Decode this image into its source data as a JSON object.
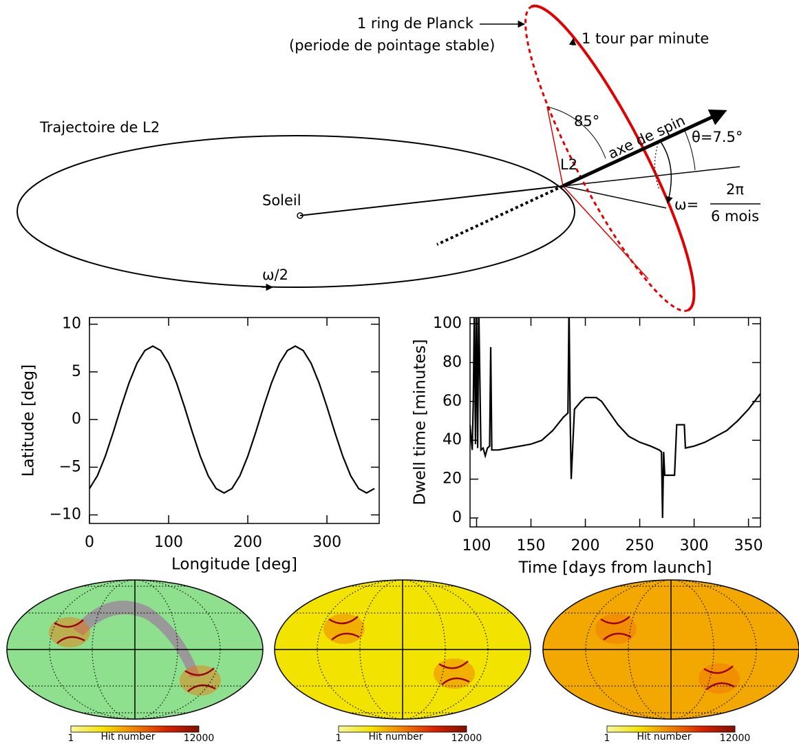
{
  "diagram": {
    "ring": "1 ring de Planck",
    "ring_sub": "(periode de pointage stable)",
    "tour": "1 tour par minute",
    "trajectory": "Trajectoire de L2",
    "sun": "Soleil",
    "l2": "L2",
    "angle": "85°",
    "spin_axis": "axe de spin",
    "theta": "θ=7.5°",
    "omega_lhs": "ω=",
    "omega_num": "2π",
    "omega_den": "6 mois",
    "omega_half": "ω/2"
  },
  "chart_data": [
    {
      "type": "line",
      "x_label": "Longitude [deg]",
      "y_label": "Latitude [deg]",
      "color": "#000000",
      "x": [
        0,
        10,
        20,
        30,
        40,
        50,
        60,
        70,
        80,
        90,
        100,
        110,
        120,
        130,
        140,
        150,
        160,
        170,
        180,
        190,
        200,
        210,
        220,
        230,
        240,
        250,
        260,
        270,
        280,
        290,
        300,
        310,
        320,
        330,
        340,
        350,
        360
      ],
      "values": [
        -7.24,
        -5.9,
        -3.85,
        -1.34,
        1.34,
        3.85,
        5.9,
        7.24,
        7.7,
        7.24,
        5.9,
        3.85,
        1.34,
        -1.34,
        -3.85,
        -5.9,
        -7.24,
        -7.7,
        -7.24,
        -5.9,
        -3.85,
        -1.34,
        1.34,
        3.85,
        5.9,
        7.24,
        7.7,
        7.24,
        5.9,
        3.85,
        1.34,
        -1.34,
        -3.85,
        -5.9,
        -7.24,
        -7.7,
        -7.24
      ],
      "xlim": [
        0,
        366
      ],
      "ylim": [
        -10.9,
        10.7
      ],
      "xticks": [
        0,
        100,
        200,
        300
      ],
      "yticks": [
        {
          "value": -10,
          "label": "−10"
        },
        {
          "value": -5,
          "label": "−5"
        },
        0,
        5,
        10
      ]
    },
    {
      "type": "line",
      "x_label": "Time [days from launch]",
      "y_label": "Dwell time [minutes]",
      "color": "#000000",
      "x": [
        94,
        96,
        97,
        98,
        99,
        100,
        101,
        102,
        104,
        106,
        108,
        110,
        112,
        113,
        114,
        120,
        130,
        140,
        150,
        160,
        170,
        180,
        184,
        185,
        186,
        187,
        190,
        196,
        200,
        205,
        210,
        215,
        220,
        230,
        240,
        250,
        260,
        268,
        270,
        271,
        272,
        273,
        282,
        283,
        284,
        291,
        292,
        300,
        310,
        320,
        330,
        340,
        350,
        361
      ],
      "values": [
        48,
        35,
        60,
        110,
        38,
        110,
        36,
        110,
        35,
        36,
        32,
        36,
        37,
        88,
        35,
        35,
        36,
        37,
        38,
        40,
        45,
        52,
        54,
        110,
        54,
        20,
        56,
        60,
        62,
        62,
        62,
        60,
        56,
        48,
        42,
        39,
        37,
        35,
        34,
        0,
        34,
        22,
        22,
        35,
        48,
        48,
        36,
        37,
        39,
        42,
        45,
        50,
        56,
        64
      ],
      "xlim": [
        94,
        361
      ],
      "ylim": [
        -4.6,
        103.2
      ],
      "xticks": [
        100,
        150,
        200,
        250,
        300,
        350
      ],
      "yticks": [
        0,
        20,
        40,
        60,
        80,
        100
      ]
    }
  ],
  "maps": [
    {
      "color": "#8ee08e",
      "colorbar": {
        "min": "1",
        "label": "Hit number",
        "max": "12000"
      }
    },
    {
      "color": "#f2e400",
      "colorbar": {
        "min": "1",
        "label": "Hit number",
        "max": "12000"
      }
    },
    {
      "color": "#f2a800",
      "colorbar": {
        "min": "1",
        "label": "Hit number",
        "max": "12000"
      }
    }
  ]
}
